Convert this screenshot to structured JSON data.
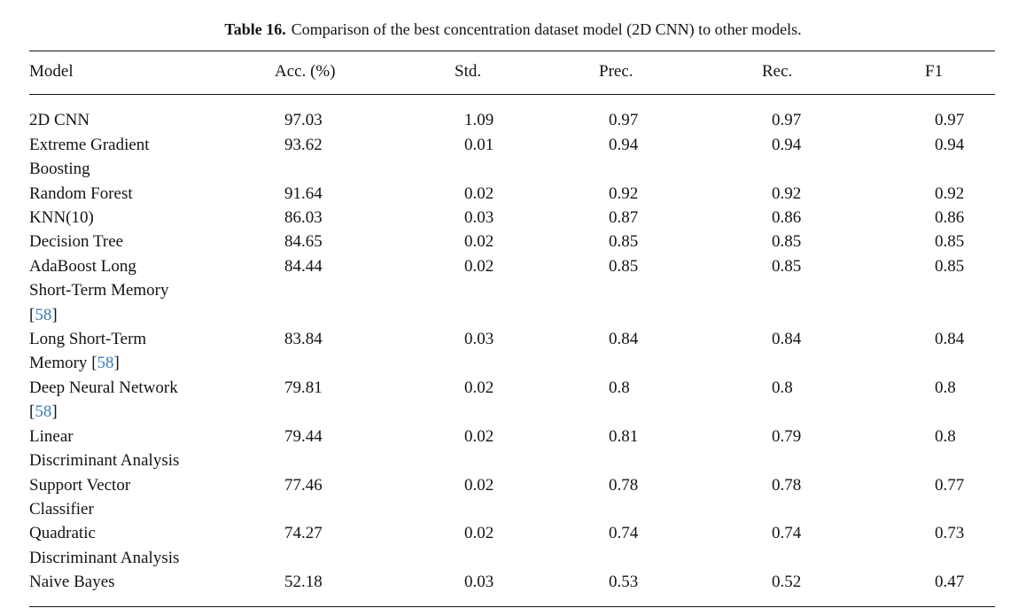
{
  "caption": {
    "label": "Table 16.",
    "text": "Comparison of the best concentration dataset model (2D CNN) to other models."
  },
  "table": {
    "columns": [
      "Model",
      "Acc. (%)",
      "Std.",
      "Prec.",
      "Rec.",
      "F1"
    ],
    "rows": [
      {
        "model_lines": [
          "2D CNN"
        ],
        "acc": "97.03",
        "std": "1.09",
        "prec": "0.97",
        "rec": "0.97",
        "f1": "0.97"
      },
      {
        "model_lines": [
          "Extreme Gradient",
          "Boosting"
        ],
        "acc": "93.62",
        "std": "0.01",
        "prec": "0.94",
        "rec": "0.94",
        "f1": "0.94"
      },
      {
        "model_lines": [
          "Random Forest"
        ],
        "acc": "91.64",
        "std": "0.02",
        "prec": "0.92",
        "rec": "0.92",
        "f1": "0.92"
      },
      {
        "model_lines": [
          "KNN(10)"
        ],
        "acc": "86.03",
        "std": "0.03",
        "prec": "0.87",
        "rec": "0.86",
        "f1": "0.86"
      },
      {
        "model_lines": [
          "Decision Tree"
        ],
        "acc": "84.65",
        "std": "0.02",
        "prec": "0.85",
        "rec": "0.85",
        "f1": "0.85"
      },
      {
        "model_lines": [
          "AdaBoost Long",
          "Short-Term Memory",
          "[58]"
        ],
        "acc": "84.44",
        "std": "0.02",
        "prec": "0.85",
        "rec": "0.85",
        "f1": "0.85"
      },
      {
        "model_lines": [
          "Long Short-Term",
          "Memory [58]"
        ],
        "acc": "83.84",
        "std": "0.03",
        "prec": "0.84",
        "rec": "0.84",
        "f1": "0.84"
      },
      {
        "model_lines": [
          "Deep Neural Network",
          "[58]"
        ],
        "acc": "79.81",
        "std": "0.02",
        "prec": "0.8",
        "rec": "0.8",
        "f1": "0.8"
      },
      {
        "model_lines": [
          "Linear",
          "Discriminant Analysis"
        ],
        "acc": "79.44",
        "std": "0.02",
        "prec": "0.81",
        "rec": "0.79",
        "f1": "0.8"
      },
      {
        "model_lines": [
          "Support Vector",
          "Classifier"
        ],
        "acc": "77.46",
        "std": "0.02",
        "prec": "0.78",
        "rec": "0.78",
        "f1": "0.77"
      },
      {
        "model_lines": [
          "Quadratic",
          "Discriminant Analysis"
        ],
        "acc": "74.27",
        "std": "0.02",
        "prec": "0.74",
        "rec": "0.74",
        "f1": "0.73"
      },
      {
        "model_lines": [
          "Naive Bayes"
        ],
        "acc": "52.18",
        "std": "0.03",
        "prec": "0.53",
        "rec": "0.52",
        "f1": "0.47"
      }
    ]
  },
  "colors": {
    "text": "#141414",
    "citation_blue": "#3a7cbf"
  }
}
